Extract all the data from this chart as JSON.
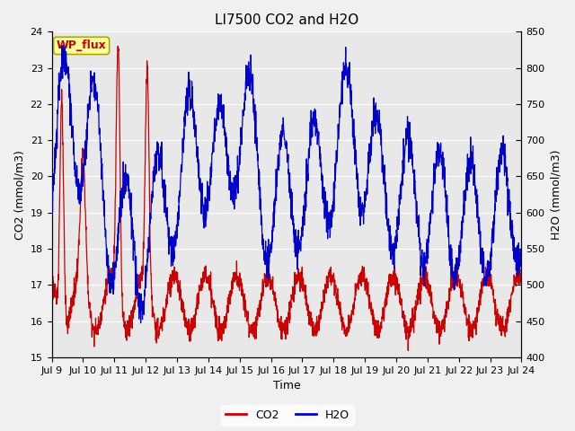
{
  "title": "LI7500 CO2 and H2O",
  "xlabel": "Time",
  "ylabel_left": "CO2 (mmol/m3)",
  "ylabel_right": "H2O (mmol/m3)",
  "ylim_left": [
    15.0,
    24.0
  ],
  "ylim_right": [
    400,
    850
  ],
  "yticks_left": [
    15.0,
    16.0,
    17.0,
    18.0,
    19.0,
    20.0,
    21.0,
    22.0,
    23.0,
    24.0
  ],
  "yticks_right": [
    400,
    450,
    500,
    550,
    600,
    650,
    700,
    750,
    800,
    850
  ],
  "xtick_days": [
    9,
    10,
    11,
    12,
    13,
    14,
    15,
    16,
    17,
    18,
    19,
    20,
    21,
    22,
    23,
    24
  ],
  "xtick_labels": [
    "Jul 9",
    "Jul 10",
    "Jul 11",
    "Jul 12",
    "Jul 13",
    "Jul 14",
    "Jul 15",
    "Jul 16",
    "Jul 17",
    "Jul 18",
    "Jul 19",
    "Jul 20",
    "Jul 21",
    "Jul 22",
    "Jul 23",
    "Jul 24"
  ],
  "co2_color": "#cc0000",
  "h2o_color": "#0000cc",
  "fig_facecolor": "#f0f0f0",
  "plot_facecolor": "#e8e8e8",
  "grid_color": "#ffffff",
  "annotation_text": "WP_flux",
  "annotation_color": "#cc0000",
  "annotation_bg": "#ffff99",
  "annotation_border": "#aaa800",
  "legend_co2": "CO2",
  "legend_h2o": "H2O",
  "title_fontsize": 11,
  "label_fontsize": 9,
  "tick_fontsize": 8,
  "legend_fontsize": 9,
  "annot_fontsize": 9
}
